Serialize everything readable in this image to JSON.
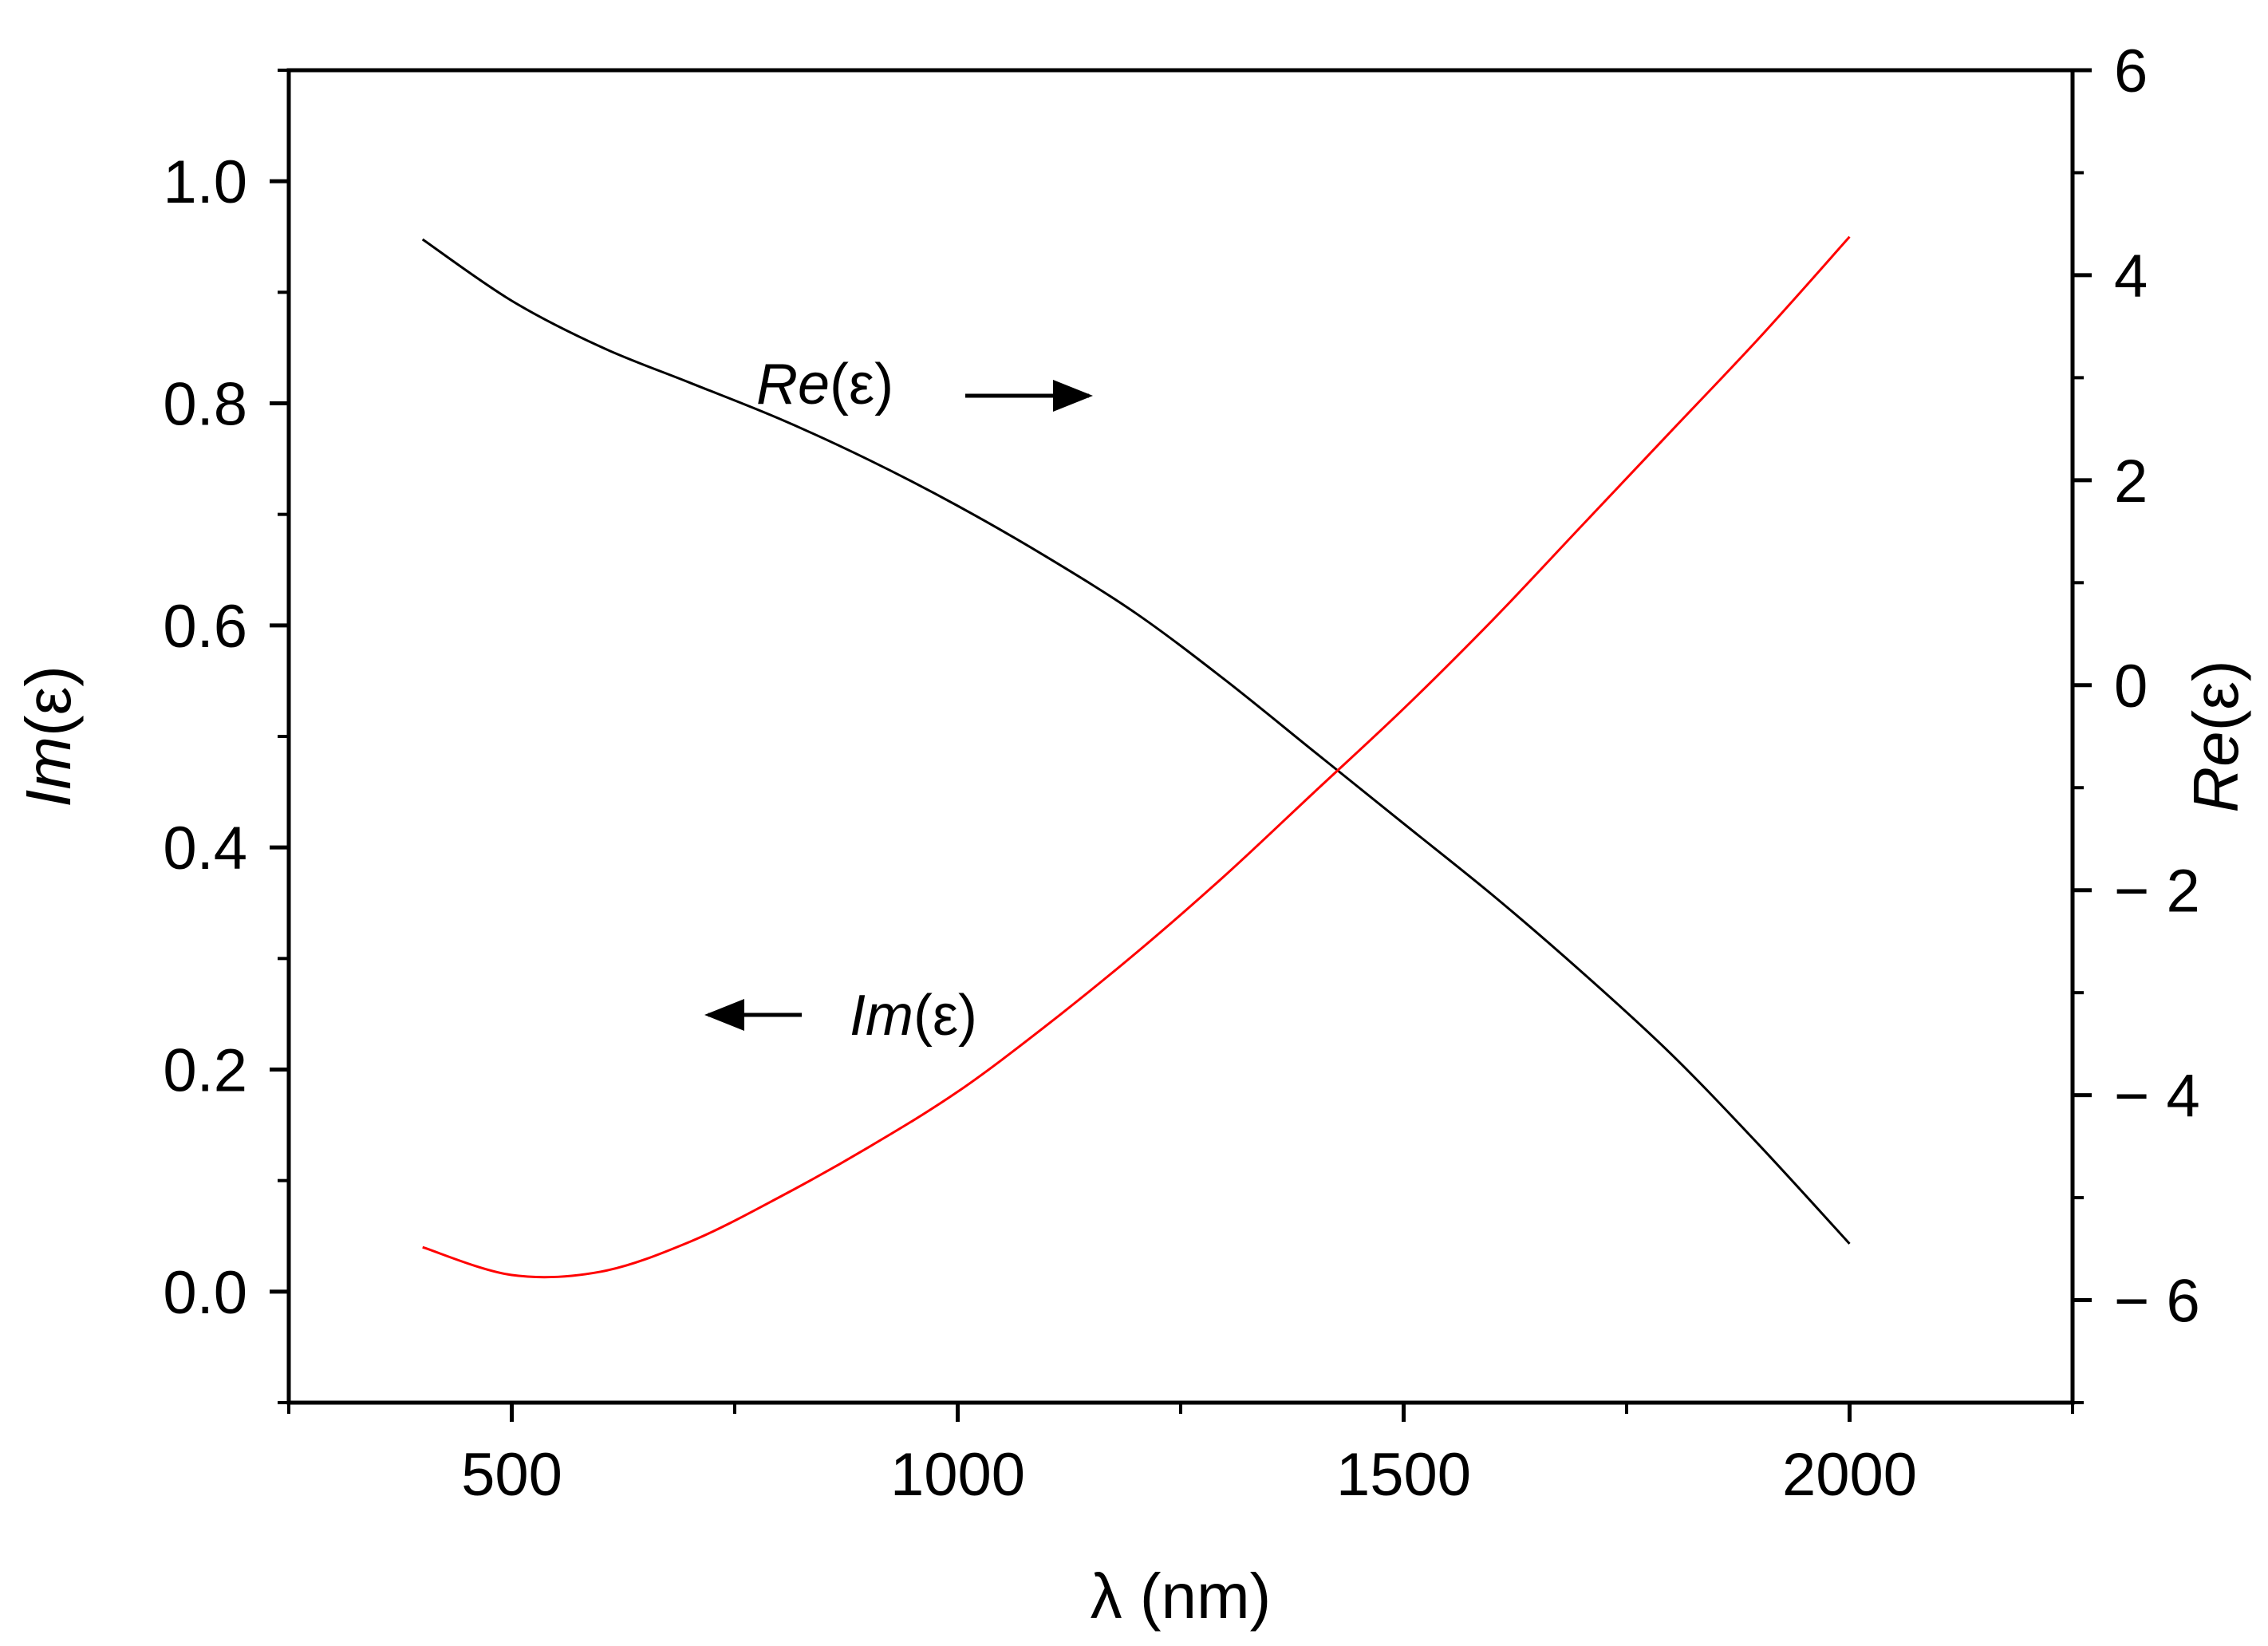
{
  "chart_data": {
    "type": "line",
    "x": [
      400,
      500,
      600,
      700,
      800,
      900,
      1000,
      1100,
      1200,
      1300,
      1400,
      1500,
      1600,
      1700,
      1800,
      1900,
      2000
    ],
    "xlabel_symbol": "λ",
    "xlabel_unit": "(nm)",
    "xlim": [
      250,
      2250
    ],
    "xticks": [
      500,
      1000,
      1500,
      2000
    ],
    "xtick_labels": [
      "500",
      "1000",
      "1500",
      "2000"
    ],
    "ylabel_left_italic": "Im",
    "ylabel_left_rest": "(ε)",
    "ylim_left": [
      -0.1,
      1.1
    ],
    "yticks_left": [
      0.0,
      0.2,
      0.4,
      0.6,
      0.8,
      1.0
    ],
    "ytick_labels_left": [
      "0.0",
      "0.2",
      "0.4",
      "0.6",
      "0.8",
      "1.0"
    ],
    "ylabel_right_italic": "Re",
    "ylabel_right_rest": "(ε)",
    "ylim_right": [
      -7,
      6
    ],
    "yticks_right": [
      -6,
      -4,
      -2,
      0,
      2,
      4,
      6
    ],
    "ytick_labels_right": [
      "− 6",
      "− 4",
      "− 2",
      "0",
      "2",
      "4",
      "6"
    ],
    "series": [
      {
        "name": "Re(ε)",
        "axis": "right",
        "color": "#000000",
        "values": [
          4.35,
          3.75,
          3.3,
          2.95,
          2.6,
          2.2,
          1.75,
          1.25,
          0.7,
          0.05,
          -0.65,
          -1.35,
          -2.05,
          -2.8,
          -3.6,
          -4.5,
          -5.45
        ]
      },
      {
        "name": "Im(ε)",
        "axis": "left",
        "color": "#ff0000",
        "values": [
          0.04,
          0.015,
          0.018,
          0.045,
          0.085,
          0.13,
          0.18,
          0.24,
          0.305,
          0.375,
          0.45,
          0.525,
          0.605,
          0.69,
          0.775,
          0.86,
          0.95
        ]
      }
    ],
    "annotations": [
      {
        "italic": "Re",
        "rest": "(ε)",
        "arrow": "right"
      },
      {
        "italic": "Im",
        "rest": "(ε)",
        "arrow": "left"
      }
    ]
  }
}
